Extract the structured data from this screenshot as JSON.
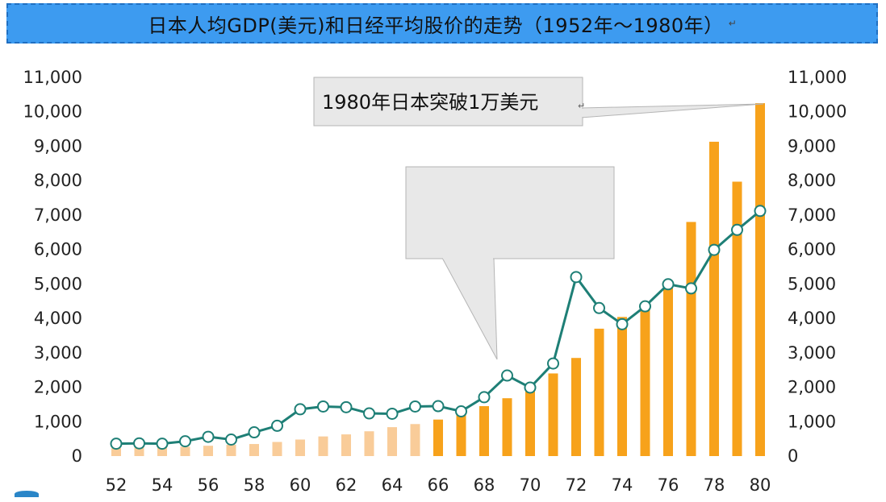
{
  "title": "日本人均GDP(美元)和日经平均股价的走势（1952年～1980年）",
  "title_mark": "↵",
  "chart_data": {
    "type": "bar",
    "title": "日本人均GDP(美元)和日经平均股价的走势（1952年～1980年）",
    "xlabel": "",
    "ylabel": "",
    "ylim": [
      0,
      11000
    ],
    "y_ticks": [
      "0",
      "1,000",
      "2,000",
      "3,000",
      "4,000",
      "5,000",
      "6,000",
      "7,000",
      "8,000",
      "9,000",
      "10,000",
      "11,000"
    ],
    "x": [
      "52",
      "53",
      "54",
      "55",
      "56",
      "57",
      "58",
      "59",
      "60",
      "61",
      "62",
      "63",
      "64",
      "65",
      "66",
      "67",
      "68",
      "69",
      "70",
      "71",
      "72",
      "73",
      "74",
      "75",
      "76",
      "77",
      "78",
      "79",
      "80"
    ],
    "x_tick_labels": [
      "52",
      "54",
      "56",
      "58",
      "60",
      "62",
      "64",
      "66",
      "68",
      "70",
      "72",
      "74",
      "76",
      "78",
      "80"
    ],
    "series": [
      {
        "kind": "bar",
        "values": [
          230,
          250,
          260,
          270,
          300,
          330,
          350,
          410,
          480,
          570,
          630,
          720,
          840,
          930,
          1060,
          1210,
          1450,
          1680,
          1970,
          2400,
          2850,
          3700,
          4040,
          4250,
          4980,
          6800,
          9130,
          7970,
          10250
        ]
      },
      {
        "kind": "line",
        "values": [
          360,
          370,
          360,
          430,
          560,
          480,
          690,
          880,
          1360,
          1440,
          1420,
          1240,
          1230,
          1440,
          1450,
          1300,
          1710,
          2340,
          1990,
          2690,
          5200,
          4300,
          3830,
          4350,
          4990,
          4870,
          5990,
          6570,
          7120
        ]
      }
    ],
    "colors": {
      "bar_light": "#f9cc99",
      "bar_dark": "#f7a21b",
      "line": "#1e7f76",
      "marker_fill": "#ffffff"
    },
    "grid": false,
    "callouts": [
      {
        "text": "1980年日本突破1万美元",
        "mark": "↵"
      },
      {
        "text": ""
      }
    ]
  }
}
